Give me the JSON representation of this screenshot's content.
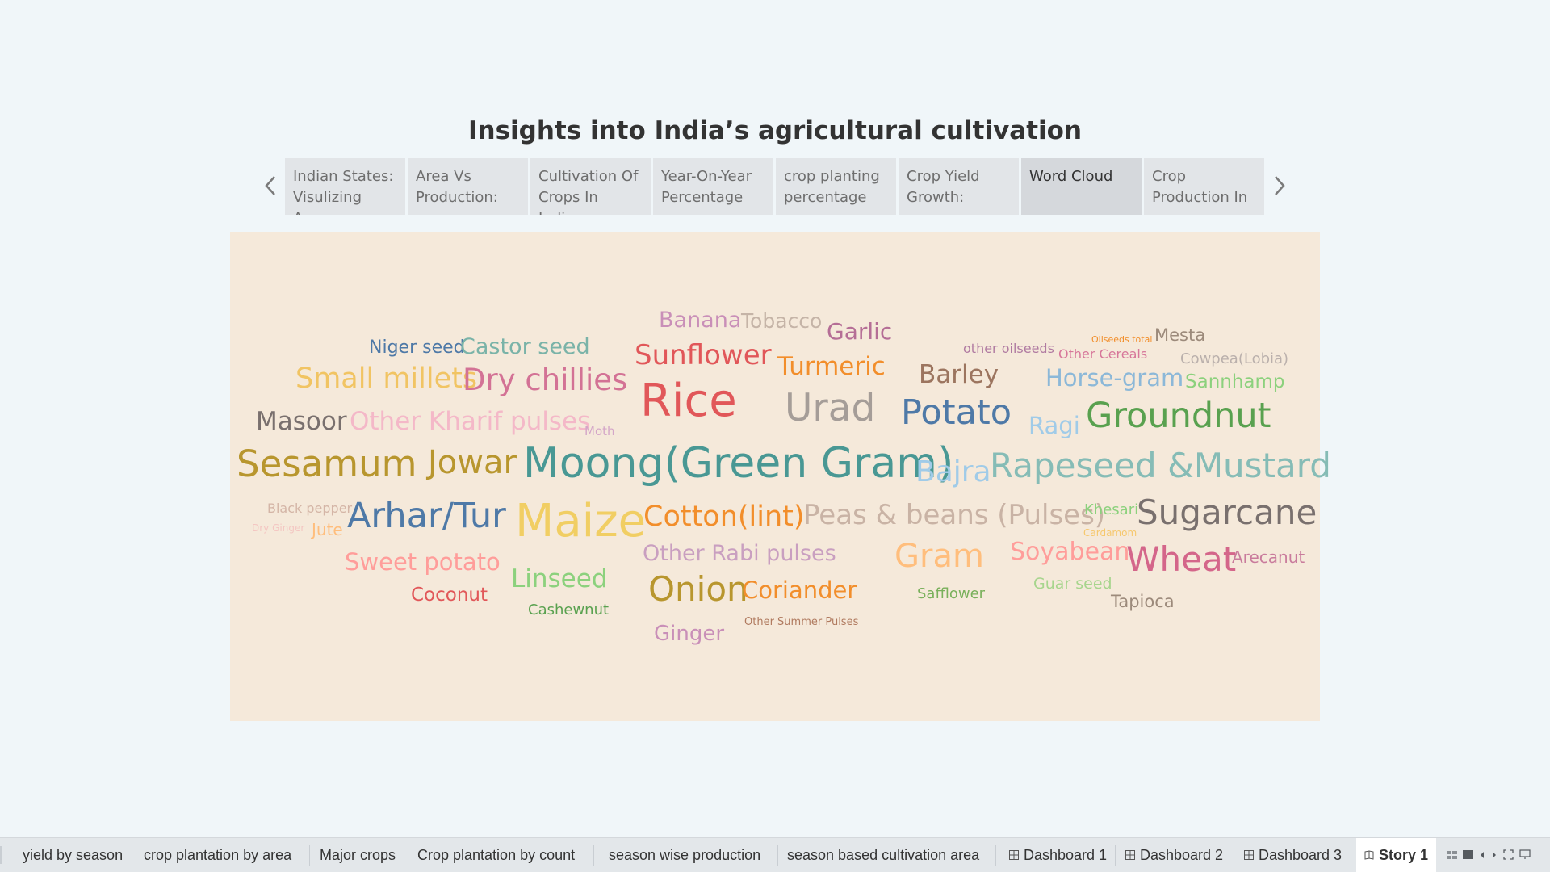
{
  "story": {
    "title": "Insights into India’s agricultural cultivation"
  },
  "nav": {
    "prev_icon": "chevron-left-icon",
    "next_icon": "chevron-right-icon"
  },
  "story_points": [
    {
      "label": "Indian States: Visulizing Area",
      "active": false
    },
    {
      "label": "Area Vs Production:",
      "active": false
    },
    {
      "label": "Cultivation Of Crops In India:",
      "active": false
    },
    {
      "label": "Year-On-Year Percentage",
      "active": false
    },
    {
      "label": "crop planting percentage",
      "active": false
    },
    {
      "label": "Crop Yield Growth:",
      "active": false
    },
    {
      "label": "Word Cloud",
      "active": true
    },
    {
      "label": "Crop Production In",
      "active": false
    }
  ],
  "word_cloud": {
    "words": [
      {
        "text": "Banana",
        "color": "#c98fb8"
      },
      {
        "text": "Tobacco",
        "color": "#c5b4a7"
      },
      {
        "text": "Garlic",
        "color": "#b56e96"
      },
      {
        "text": "Oilseeds total",
        "color": "#f28e2b"
      },
      {
        "text": "Mesta",
        "color": "#9c8a7b"
      },
      {
        "text": "Niger seed",
        "color": "#4e79a7"
      },
      {
        "text": "Castor seed",
        "color": "#7ab3a8"
      },
      {
        "text": "other oilseeds",
        "color": "#b07aa1"
      },
      {
        "text": "Other Cereals",
        "color": "#d7779a"
      },
      {
        "text": "Cowpea(Lobia)",
        "color": "#bab0ac"
      },
      {
        "text": "Sunflower",
        "color": "#e15759"
      },
      {
        "text": "Turmeric",
        "color": "#f28e2b"
      },
      {
        "text": "Barley",
        "color": "#9c755f"
      },
      {
        "text": "Small millets",
        "color": "#f1c463"
      },
      {
        "text": "Dry chillies",
        "color": "#d37295"
      },
      {
        "text": "Horse-gram",
        "color": "#8cb8d8"
      },
      {
        "text": "Sannhamp",
        "color": "#8cd17d"
      },
      {
        "text": "Rice",
        "color": "#e15759"
      },
      {
        "text": "Urad",
        "color": "#a59d98"
      },
      {
        "text": "Potato",
        "color": "#4e79a7"
      },
      {
        "text": "Masoor",
        "color": "#79706e"
      },
      {
        "text": "Other Kharif pulses",
        "color": "#f4b8c8"
      },
      {
        "text": "Moth",
        "color": "#d4a6c8"
      },
      {
        "text": "Ragi",
        "color": "#a0cbe8"
      },
      {
        "text": "Groundnut",
        "color": "#59a14f"
      },
      {
        "text": "Sesamum",
        "color": "#b8962e"
      },
      {
        "text": "Jowar",
        "color": "#b8962e"
      },
      {
        "text": "Moong(Green Gram)",
        "color": "#499894"
      },
      {
        "text": "Bajra",
        "color": "#a0cbe8"
      },
      {
        "text": "Rapeseed &Mustard",
        "color": "#86bcb6"
      },
      {
        "text": "Black pepper",
        "color": "#d4b5a6"
      },
      {
        "text": "Dry Ginger",
        "color": "#f4c6c2"
      },
      {
        "text": "Jute",
        "color": "#ffbe7d"
      },
      {
        "text": "Arhar/Tur",
        "color": "#4e79a7"
      },
      {
        "text": "Maize",
        "color": "#f1ce63"
      },
      {
        "text": "Cotton(lint)",
        "color": "#f28e2b"
      },
      {
        "text": "Peas & beans (Pulses)",
        "color": "#c9b3a5"
      },
      {
        "text": "Khesari",
        "color": "#8cd17d"
      },
      {
        "text": "Cardamom",
        "color": "#f6c86e"
      },
      {
        "text": "Sugarcane",
        "color": "#79706e"
      },
      {
        "text": "Sweet potato",
        "color": "#ff9d9a"
      },
      {
        "text": "Other Rabi pulses",
        "color": "#c99fc0"
      },
      {
        "text": "Gram",
        "color": "#ffbe7d"
      },
      {
        "text": "Soyabean",
        "color": "#ff9d9a"
      },
      {
        "text": "Wheat",
        "color": "#d4668a"
      },
      {
        "text": "Arecanut",
        "color": "#c97b9c"
      },
      {
        "text": "Linseed",
        "color": "#8cd17d"
      },
      {
        "text": "Onion",
        "color": "#b8962e"
      },
      {
        "text": "Coriander",
        "color": "#f28e2b"
      },
      {
        "text": "Coconut",
        "color": "#e15759"
      },
      {
        "text": "Safflower",
        "color": "#79b05b"
      },
      {
        "text": "Guar seed",
        "color": "#a7d58d"
      },
      {
        "text": "Tapioca",
        "color": "#9c8a7b"
      },
      {
        "text": "Cashewnut",
        "color": "#59a14f"
      },
      {
        "text": "Other Summer Pulses",
        "color": "#b07a5f"
      },
      {
        "text": "Ginger",
        "color": "#c98fb8"
      }
    ]
  },
  "tabs": [
    {
      "label": "yield by season",
      "icon": "",
      "active": false
    },
    {
      "label": "crop plantation by area",
      "icon": "",
      "active": false
    },
    {
      "label": "Major crops",
      "icon": "",
      "active": false
    },
    {
      "label": "Crop plantation by count",
      "icon": "",
      "active": false
    },
    {
      "label": "season wise production",
      "icon": "",
      "active": false
    },
    {
      "label": "season based cultivation area",
      "icon": "",
      "active": false
    },
    {
      "label": "Dashboard 1",
      "icon": "dashboard-icon",
      "active": false
    },
    {
      "label": "Dashboard 2",
      "icon": "dashboard-icon",
      "active": false
    },
    {
      "label": "Dashboard 3",
      "icon": "dashboard-icon",
      "active": false
    },
    {
      "label": "Story 1",
      "icon": "story-icon",
      "active": true
    }
  ],
  "tab_controls": [
    "sheet-sorter-icon",
    "filmstrip-icon",
    "scroll-left-icon",
    "scroll-right-icon",
    "fullscreen-icon",
    "presentation-icon"
  ]
}
